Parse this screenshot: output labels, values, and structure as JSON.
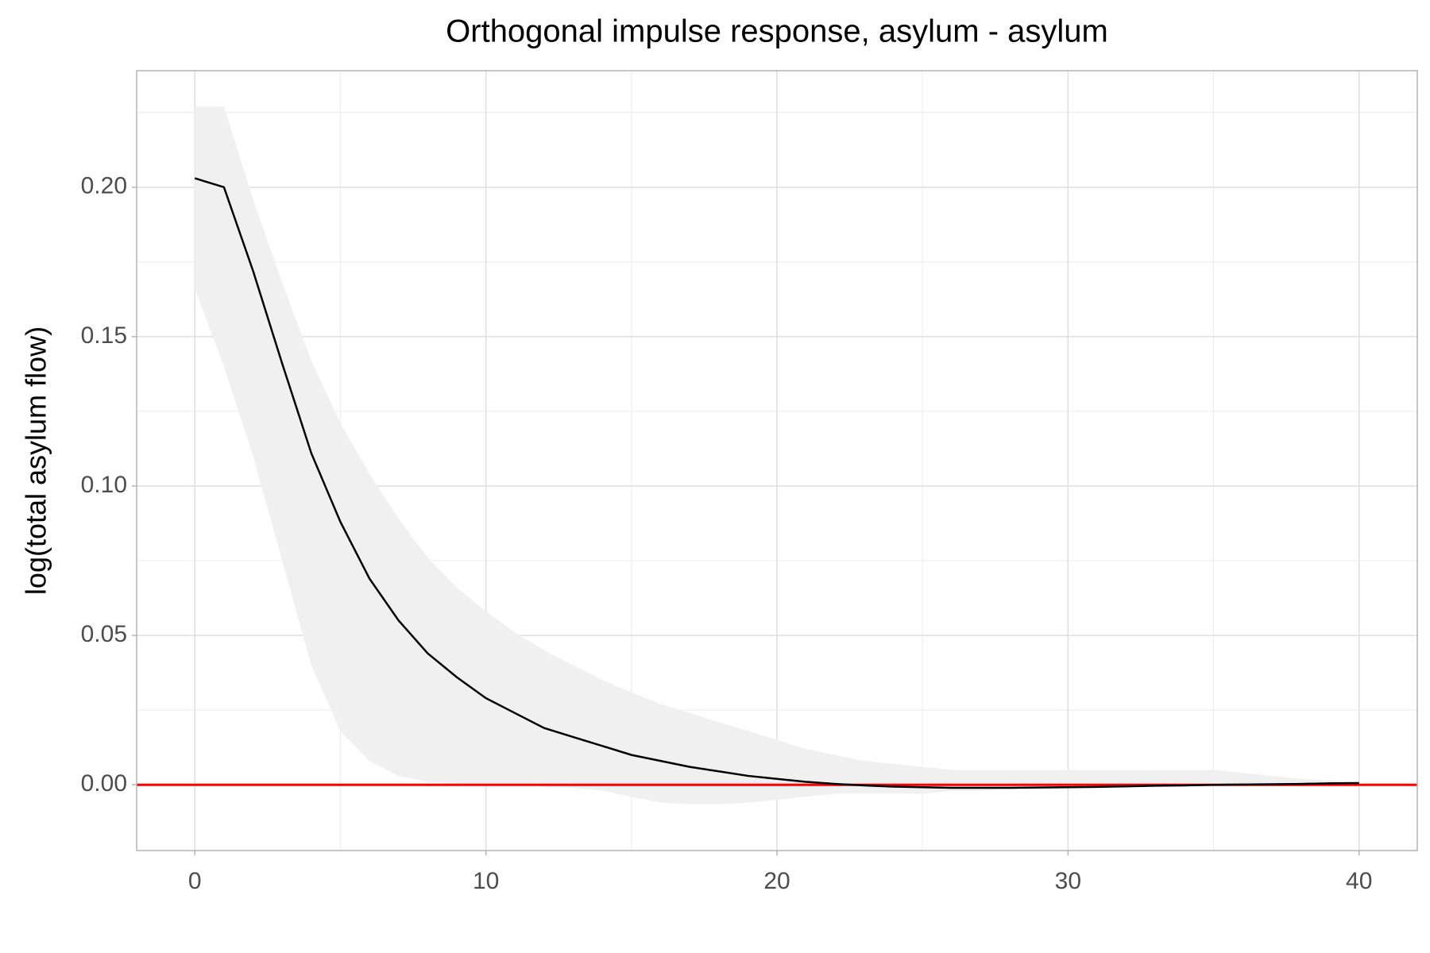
{
  "chart_data": {
    "type": "line",
    "title": "Orthogonal impulse response, asylum - asylum",
    "y_label": "log(total asylum flow)",
    "x": [
      0,
      1,
      2,
      3,
      4,
      5,
      6,
      7,
      8,
      9,
      10,
      11,
      12,
      13,
      14,
      15,
      16,
      17,
      18,
      19,
      20,
      21,
      22,
      23,
      24,
      25,
      26,
      27,
      28,
      29,
      30,
      31,
      32,
      33,
      34,
      35,
      36,
      37,
      38,
      39,
      40
    ],
    "values": [
      0.203,
      0.2,
      0.172,
      0.141,
      0.111,
      0.088,
      0.069,
      0.055,
      0.044,
      0.036,
      0.029,
      0.024,
      0.019,
      0.016,
      0.013,
      0.01,
      0.008,
      0.006,
      0.0045,
      0.003,
      0.002,
      0.001,
      0.0003,
      -0.0002,
      -0.0006,
      -0.0008,
      -0.001,
      -0.001,
      -0.001,
      -0.0009,
      -0.0008,
      -0.0007,
      -0.0005,
      -0.0003,
      -0.0002,
      0,
      0.0001,
      0.0002,
      0.0003,
      0.0005,
      0.0006
    ],
    "upper": [
      0.227,
      0.227,
      0.196,
      0.168,
      0.142,
      0.121,
      0.104,
      0.089,
      0.076,
      0.066,
      0.058,
      0.051,
      0.045,
      0.04,
      0.035,
      0.031,
      0.027,
      0.024,
      0.021,
      0.018,
      0.015,
      0.012,
      0.01,
      0.008,
      0.007,
      0.006,
      0.005,
      0.005,
      0.005,
      0.005,
      0.005,
      0.005,
      0.005,
      0.005,
      0.005,
      0.005,
      0.004,
      0.003,
      0.002,
      0.0015,
      0.001
    ],
    "lower": [
      0.166,
      0.14,
      0.11,
      0.075,
      0.04,
      0.018,
      0.008,
      0.003,
      0.001,
      0.0005,
      0,
      0,
      -0.0005,
      -0.001,
      -0.002,
      -0.004,
      -0.006,
      -0.0065,
      -0.0065,
      -0.006,
      -0.005,
      -0.004,
      -0.003,
      -0.003,
      -0.003,
      -0.003,
      -0.002,
      -0.002,
      -0.0015,
      -0.001,
      -0.001,
      -0.001,
      -0.001,
      -0.0005,
      -0.0005,
      -0.0003,
      0,
      0,
      0,
      0,
      0
    ],
    "color": "#000000",
    "band_color": "#f0f0f0",
    "hline": 0,
    "hline_color": "#ff0000",
    "xlim": [
      -2,
      42
    ],
    "xticks": [
      0,
      10,
      20,
      30,
      40
    ],
    "ylim": [
      -0.022,
      0.239
    ],
    "yticks": [
      {
        "value": 0,
        "label": "0.00"
      },
      {
        "value": 0.05,
        "label": "0.05"
      },
      {
        "value": 0.1,
        "label": "0.10"
      },
      {
        "value": 0.15,
        "label": "0.15"
      },
      {
        "value": 0.2,
        "label": "0.20"
      }
    ],
    "grid": true
  }
}
